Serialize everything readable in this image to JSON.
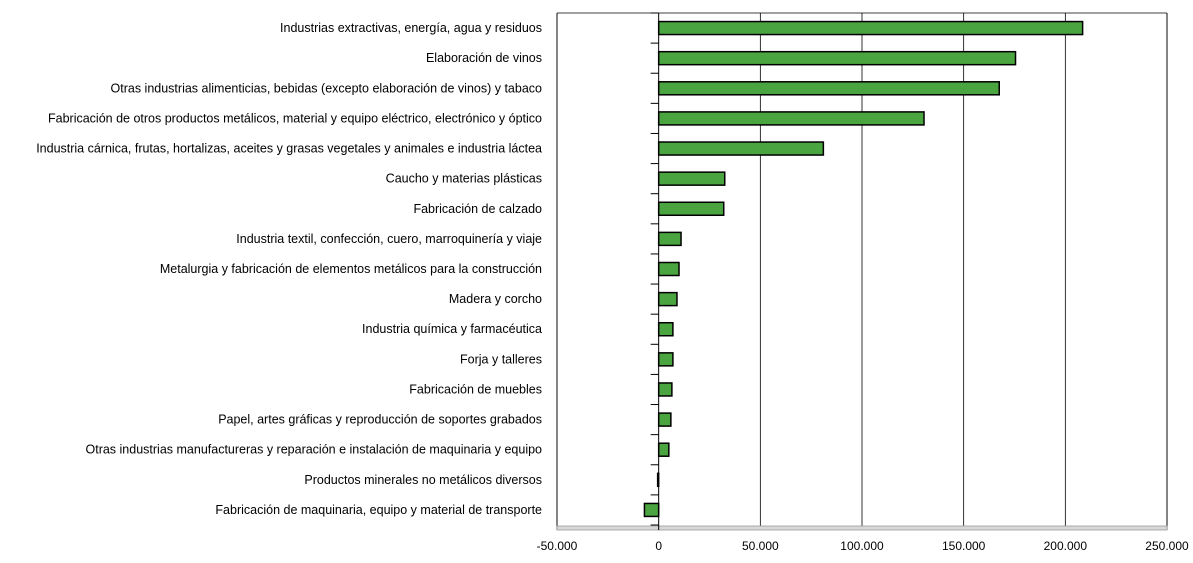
{
  "chart_data": {
    "type": "bar",
    "orientation": "horizontal",
    "title": "",
    "xlabel": "",
    "ylabel": "",
    "xlim": [
      -50000,
      250000
    ],
    "grid": "vertical",
    "legend": "none",
    "bar_color": "#4aa43f",
    "bar_outline": "#000000",
    "categories": [
      "Industrias extractivas, energía, agua y residuos",
      "Elaboración de vinos",
      "Otras industrias alimenticias, bebidas (excepto elaboración de vinos) y tabaco",
      "Fabricación de otros productos metálicos, material y equipo eléctrico, electrónico y óptico",
      "Industria cárnica, frutas, hortalizas, aceites y grasas vegetales y animales e industria láctea",
      "Caucho y materias plásticas",
      "Fabricación de calzado",
      "Industria textil, confección, cuero, marroquinería y viaje",
      "Metalurgia y fabricación de elementos metálicos para la construcción",
      "Madera y corcho",
      "Industria química y farmacéutica",
      "Forja y talleres",
      "Fabricación de muebles",
      "Papel, artes gráficas y reproducción de soportes grabados",
      "Otras industrias manufactureras y reparación e instalación de maquinaria y equipo",
      "Productos minerales no metálicos diversos",
      "Fabricación de maquinaria, equipo y material de transporte"
    ],
    "values": [
      208500,
      175500,
      167500,
      130500,
      81000,
      32500,
      32000,
      11000,
      10000,
      9000,
      7000,
      7000,
      6500,
      6000,
      5000,
      -500,
      -7000
    ],
    "x_ticks": [
      -50000,
      0,
      50000,
      100000,
      150000,
      200000,
      250000
    ],
    "x_tick_labels": [
      "-50.000",
      "0",
      "50.000",
      "100.000",
      "150.000",
      "200.000",
      "250.000"
    ]
  }
}
